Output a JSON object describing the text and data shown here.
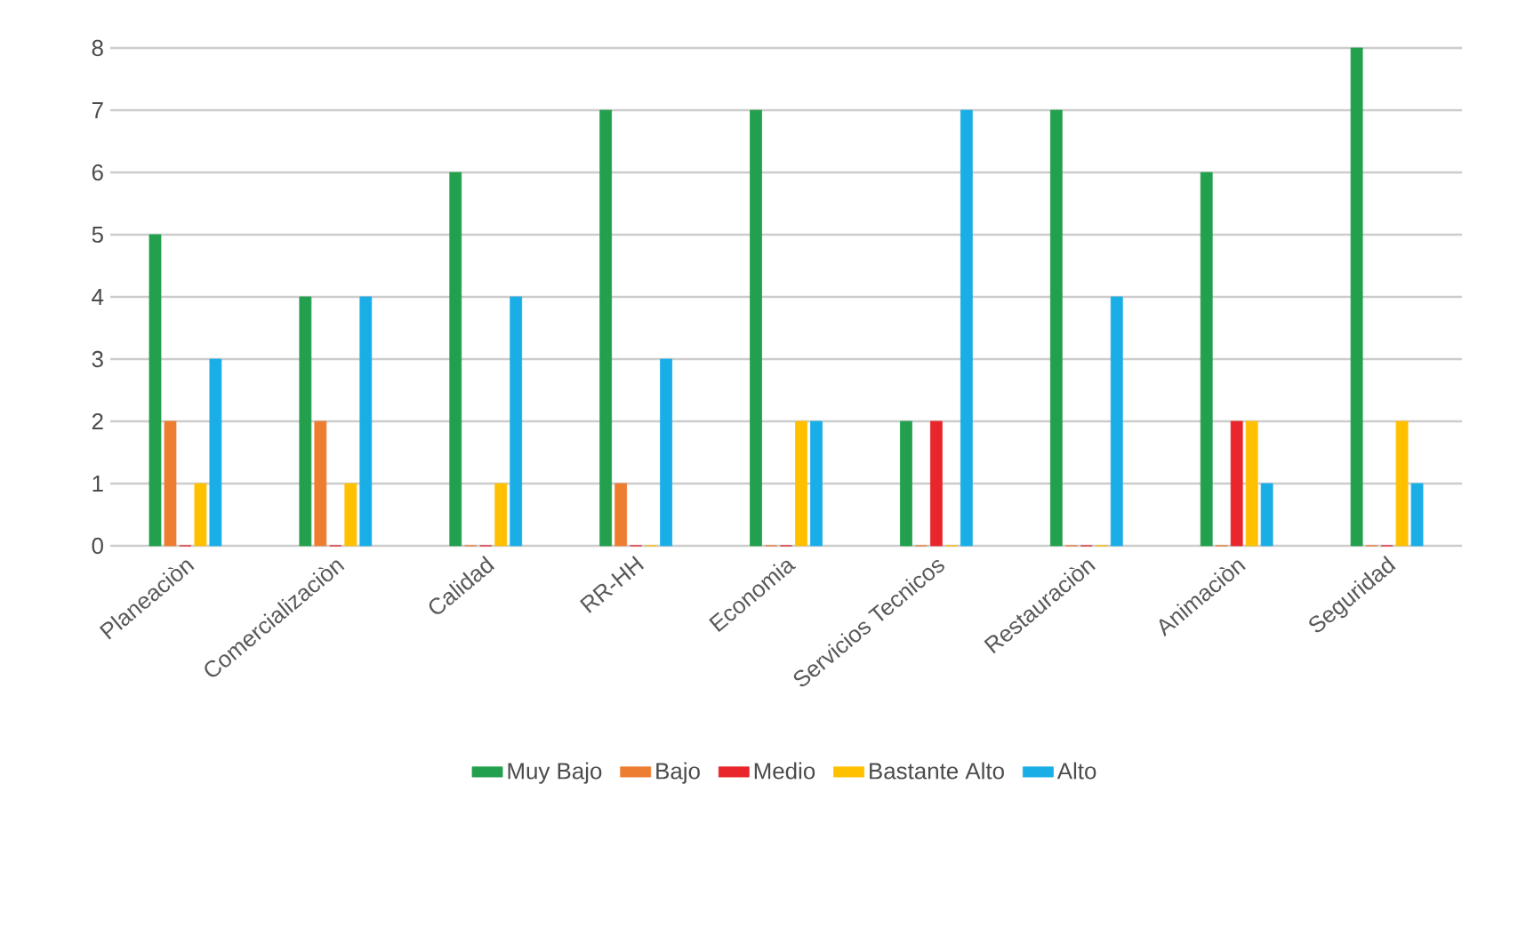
{
  "chart_data": {
    "type": "bar",
    "categories": [
      "Planeaciòn",
      "Comercializaciòn",
      "Calidad",
      "RR-HH",
      "Economia",
      "Servicios Tecnicos",
      "Restauraciòn",
      "Animaciòn",
      "Seguridad"
    ],
    "series": [
      {
        "name": "Muy Bajo",
        "color": "#23a04e",
        "values": [
          5,
          4,
          6,
          7,
          7,
          2,
          7,
          6,
          8
        ]
      },
      {
        "name": "Bajo",
        "color": "#ed7d31",
        "values": [
          2,
          2,
          0,
          1,
          0,
          0,
          0,
          0,
          0
        ]
      },
      {
        "name": "Medio",
        "color": "#e8262b",
        "values": [
          0,
          0,
          0,
          0,
          0,
          2,
          0,
          2,
          0
        ]
      },
      {
        "name": "Bastante Alto",
        "color": "#ffc000",
        "values": [
          1,
          1,
          1,
          0,
          2,
          0,
          0,
          2,
          2
        ]
      },
      {
        "name": "Alto",
        "color": "#1aaee6",
        "values": [
          3,
          4,
          4,
          3,
          2,
          7,
          4,
          1,
          1
        ]
      }
    ],
    "ylim": [
      0,
      8
    ],
    "yticks": [
      0,
      1,
      2,
      3,
      4,
      5,
      6,
      7,
      8
    ],
    "grid": "y",
    "legend": "bottom"
  }
}
